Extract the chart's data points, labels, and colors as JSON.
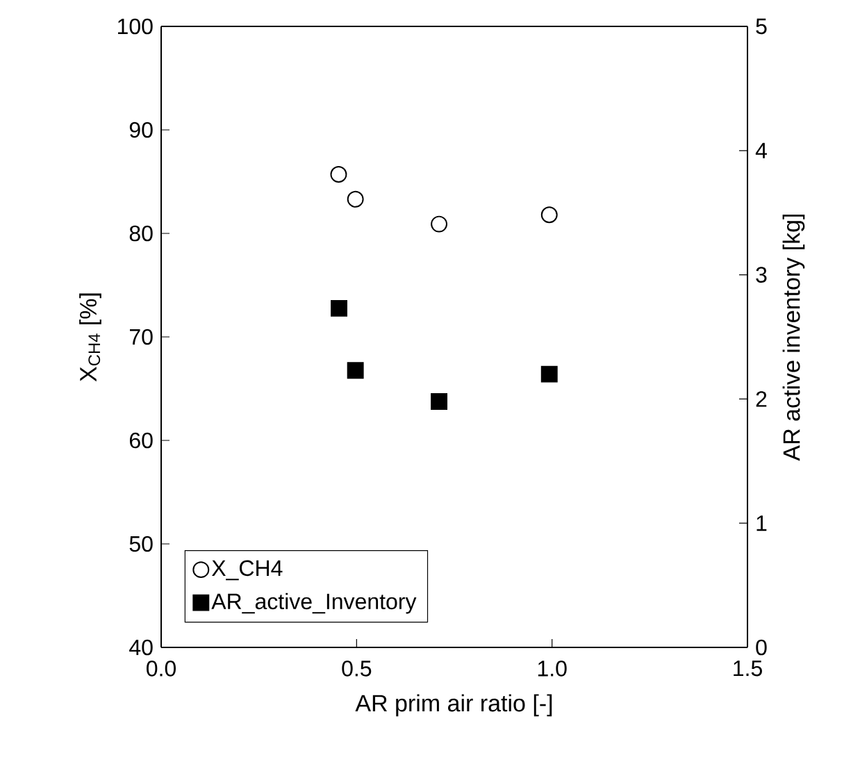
{
  "chart_data": {
    "type": "scatter",
    "xlabel": "AR prim air ratio [-]",
    "ylabel": "X$_{CH4}$ [%]",
    "y2label": "AR active inventory [kg]",
    "series": [
      {
        "name": "X_CH4",
        "color": "#000000",
        "marker": "circle",
        "x": [
          0.454,
          0.497,
          0.711,
          0.993
        ],
        "values": [
          85.7,
          83.3,
          80.9,
          81.8
        ]
      },
      {
        "name": "AR_active_Inventory",
        "color": "#000000",
        "marker": "square",
        "axis": "y2",
        "x": [
          0.455,
          0.497,
          0.711,
          0.993
        ],
        "values": [
          2.73,
          2.23,
          1.98,
          2.2
        ]
      }
    ],
    "xlim": [
      0,
      1.5
    ],
    "xticks": [
      {
        "value": 0,
        "label": "0.0"
      },
      {
        "value": 0.5,
        "label": "0.5"
      },
      {
        "value": 1,
        "label": "1.0"
      },
      {
        "value": 1.5,
        "label": "1.5"
      }
    ],
    "ylim": [
      40,
      100
    ],
    "yticks": [
      40,
      50,
      60,
      70,
      80,
      90,
      100
    ],
    "y2lim": [
      0,
      5
    ],
    "y2ticks": [
      0,
      1,
      2,
      3,
      4,
      5
    ],
    "grid": false,
    "legend": "bottom left"
  }
}
